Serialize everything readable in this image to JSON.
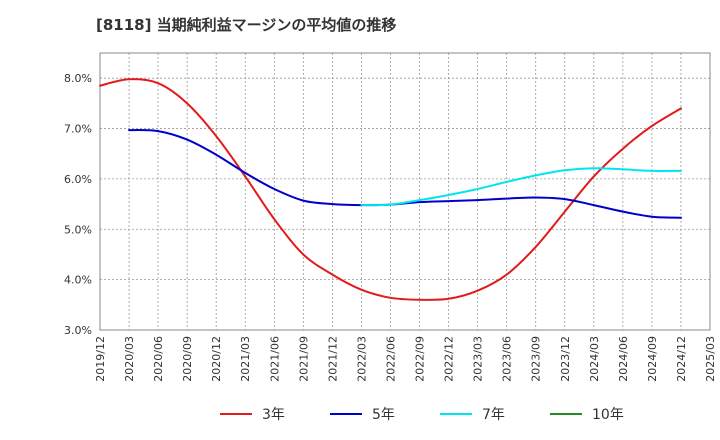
{
  "chart_data": {
    "type": "line",
    "title": "[8118]  当期純利益マージンの平均値の推移",
    "xlabel": "",
    "ylabel": "",
    "ylim": [
      3.0,
      8.5
    ],
    "y_ticks": [
      3.0,
      4.0,
      5.0,
      6.0,
      7.0,
      8.0
    ],
    "y_tick_labels": [
      "3.0%",
      "4.0%",
      "5.0%",
      "6.0%",
      "7.0%",
      "8.0%"
    ],
    "x_tick_labels": [
      "2019/12",
      "2020/03",
      "2020/06",
      "2020/09",
      "2020/12",
      "2021/03",
      "2021/06",
      "2021/09",
      "2021/12",
      "2022/03",
      "2022/06",
      "2022/09",
      "2022/12",
      "2023/03",
      "2023/06",
      "2023/09",
      "2023/12",
      "2024/03",
      "2024/06",
      "2024/09",
      "2024/12",
      "2025/03"
    ],
    "grid": true,
    "legend_position": "bottom",
    "series": [
      {
        "name": "3年",
        "color": "#e31a1c",
        "values": [
          7.85,
          7.98,
          7.9,
          7.5,
          6.85,
          6.05,
          5.2,
          4.5,
          4.1,
          3.8,
          3.64,
          3.6,
          3.62,
          3.78,
          4.1,
          4.65,
          5.35,
          6.05,
          6.6,
          7.05,
          7.4,
          null
        ]
      },
      {
        "name": "5年",
        "color": "#0000cc",
        "values": [
          null,
          6.97,
          6.95,
          6.78,
          6.48,
          6.12,
          5.8,
          5.57,
          5.5,
          5.48,
          5.49,
          5.54,
          5.56,
          5.58,
          5.61,
          5.63,
          5.6,
          5.48,
          5.35,
          5.25,
          5.23,
          null
        ]
      },
      {
        "name": "7年",
        "color": "#00e5ee",
        "values": [
          null,
          null,
          null,
          null,
          null,
          null,
          null,
          null,
          null,
          5.48,
          5.49,
          5.58,
          5.68,
          5.8,
          5.94,
          6.07,
          6.17,
          6.21,
          6.19,
          6.16,
          6.16,
          null
        ]
      },
      {
        "name": "10年",
        "color": "#228b22",
        "values": [
          null,
          null,
          null,
          null,
          null,
          null,
          null,
          null,
          null,
          null,
          null,
          null,
          null,
          null,
          null,
          null,
          null,
          null,
          null,
          null,
          null,
          null
        ]
      }
    ]
  }
}
